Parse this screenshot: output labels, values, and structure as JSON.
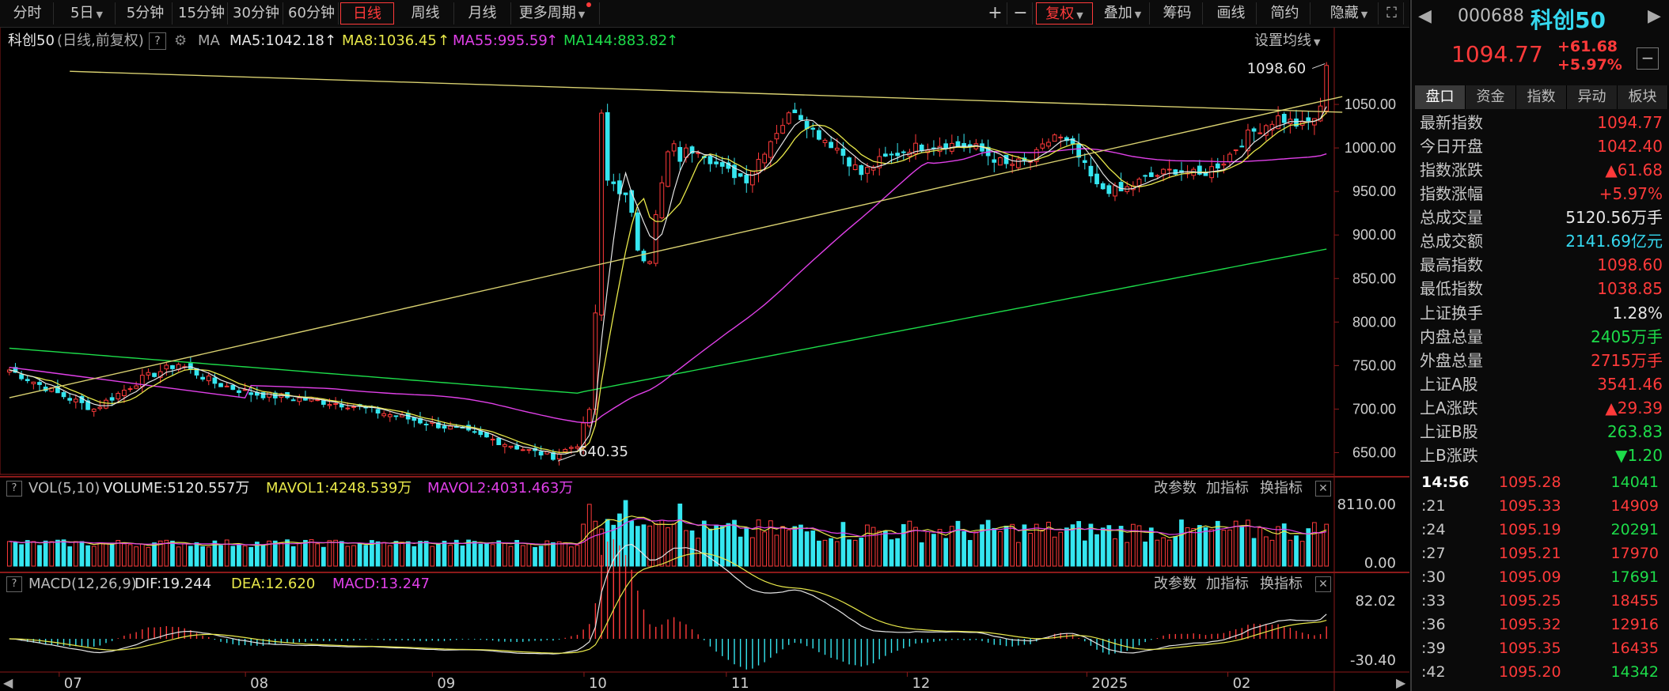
{
  "toolbar": {
    "periods": [
      "分时",
      "5日",
      "5分钟",
      "15分钟",
      "30分钟",
      "60分钟",
      "日线",
      "周线",
      "月线",
      "更多周期"
    ],
    "active_period": "日线",
    "right_buttons": [
      "+",
      "−",
      "复权",
      "叠加",
      "筹码",
      "画线",
      "简约",
      "隐藏"
    ]
  },
  "header": {
    "index_name": "科创50",
    "mode": "(日线,前复权)",
    "ma_label": "MA",
    "ma5": "MA5:1042.18",
    "ma8": "MA8:1036.45",
    "ma55": "MA55:995.59",
    "ma144": "MA144:883.82",
    "settings": "设置均线"
  },
  "vol_header": {
    "name": "VOL(5,10)",
    "volume": "VOLUME:5120.557万",
    "mavol1": "MAVOL1:4248.539万",
    "mavol2": "MAVOL2:4031.463万",
    "btn1": "改参数",
    "btn2": "加指标",
    "btn3": "换指标"
  },
  "macd_header": {
    "name": "MACD(12,26,9)",
    "dif": "DIF:19.244",
    "dea": "DEA:12.620",
    "macd": "MACD:13.247",
    "btn1": "改参数",
    "btn2": "加指标",
    "btn3": "换指标"
  },
  "annotations": {
    "high": "1098.60",
    "low": "640.35"
  },
  "panel": {
    "code": "000688",
    "name": "科创50",
    "price": "1094.77",
    "change": "+61.68",
    "change_pct": "+5.97%",
    "tabs": [
      "盘口",
      "资金",
      "指数",
      "异动",
      "板块"
    ],
    "rows1": [
      {
        "k": "最新指数",
        "v": "1094.77",
        "c": "red"
      },
      {
        "k": "今日开盘",
        "v": "1042.40",
        "c": "red"
      },
      {
        "k": "指数涨跌",
        "v": "▲61.68",
        "c": "red"
      },
      {
        "k": "指数涨幅",
        "v": "+5.97%",
        "c": "red"
      },
      {
        "k": "总成交量",
        "v": "5120.56万手",
        "c": "white"
      },
      {
        "k": "总成交额",
        "v": "2141.69亿元",
        "c": "cyan"
      },
      {
        "k": "最高指数",
        "v": "1098.60",
        "c": "red"
      },
      {
        "k": "最低指数",
        "v": "1038.85",
        "c": "red"
      }
    ],
    "rows2": [
      {
        "k": "上证换手",
        "v": "1.28%",
        "c": "white"
      },
      {
        "k": "内盘总量",
        "v": "2405万手",
        "c": "green"
      },
      {
        "k": "外盘总量",
        "v": "2715万手",
        "c": "red"
      }
    ],
    "rows3": [
      {
        "k": "上证A股",
        "v": "3541.46",
        "c": "red"
      },
      {
        "k": "上A涨跌",
        "v": "▲29.39",
        "c": "red"
      },
      {
        "k": "上证B股",
        "v": "263.83",
        "c": "green"
      },
      {
        "k": "上B涨跌",
        "v": "▼1.20",
        "c": "green"
      }
    ],
    "ticks": [
      {
        "t": "14:56",
        "p": "1095.28",
        "q": "14041",
        "c": "green"
      },
      {
        "t": ":21",
        "p": "1095.33",
        "q": "14909",
        "c": "red"
      },
      {
        "t": ":24",
        "p": "1095.19",
        "q": "20291",
        "c": "green"
      },
      {
        "t": ":27",
        "p": "1095.21",
        "q": "17970",
        "c": "red"
      },
      {
        "t": ":30",
        "p": "1095.09",
        "q": "17691",
        "c": "green"
      },
      {
        "t": ":33",
        "p": "1095.25",
        "q": "18455",
        "c": "red"
      },
      {
        "t": ":36",
        "p": "1095.32",
        "q": "12916",
        "c": "red"
      },
      {
        "t": ":39",
        "p": "1095.35",
        "q": "16435",
        "c": "red"
      },
      {
        "t": ":42",
        "p": "1095.20",
        "q": "14342",
        "c": "green"
      }
    ]
  },
  "chart_data": {
    "type": "candlestick",
    "title": "科创50 (日线,前复权)",
    "price_axis": {
      "ticks": [
        650,
        700,
        750,
        800,
        850,
        900,
        950,
        1000,
        1050
      ],
      "ylim": [
        625,
        1110
      ]
    },
    "volume_axis": {
      "ticks": [
        "8110.00",
        "0.00"
      ]
    },
    "macd_axis": {
      "ticks": [
        "82.02",
        "-30.40"
      ]
    },
    "x_labels": [
      "07",
      "08",
      "09",
      "10",
      "11",
      "12",
      "2025",
      "02"
    ],
    "colors": {
      "up": "#ff3a3a",
      "down": "#35e6f0",
      "ma5": "#e6e6e6",
      "ma8": "#e8e84a",
      "ma55": "#e040e8",
      "ma144": "#1ddc4a",
      "trend": "#d8d070"
    },
    "close_anchors": [
      [
        0,
        745
      ],
      [
        8,
        718
      ],
      [
        14,
        700
      ],
      [
        22,
        735
      ],
      [
        28,
        752
      ],
      [
        34,
        730
      ],
      [
        40,
        718
      ],
      [
        48,
        712
      ],
      [
        56,
        705
      ],
      [
        64,
        692
      ],
      [
        72,
        680
      ],
      [
        80,
        665
      ],
      [
        86,
        652
      ],
      [
        90,
        646
      ],
      [
        94,
        660
      ],
      [
        96,
        700
      ],
      [
        97,
        800
      ],
      [
        98,
        1040
      ],
      [
        99,
        960
      ],
      [
        101,
        960
      ],
      [
        104,
        890
      ],
      [
        106,
        880
      ],
      [
        109,
        990
      ],
      [
        114,
        1000
      ],
      [
        118,
        975
      ],
      [
        122,
        965
      ],
      [
        127,
        1020
      ],
      [
        130,
        1045
      ],
      [
        133,
        1020
      ],
      [
        137,
        1000
      ],
      [
        141,
        970
      ],
      [
        144,
        985
      ],
      [
        149,
        1000
      ],
      [
        155,
        1005
      ],
      [
        160,
        1000
      ],
      [
        165,
        980
      ],
      [
        169,
        985
      ],
      [
        173,
        1015
      ],
      [
        176,
        1000
      ],
      [
        180,
        955
      ],
      [
        184,
        950
      ],
      [
        188,
        965
      ],
      [
        193,
        975
      ],
      [
        197,
        968
      ],
      [
        201,
        985
      ],
      [
        205,
        1015
      ],
      [
        210,
        1035
      ],
      [
        214,
        1025
      ],
      [
        216,
        1035
      ],
      [
        217,
        1044
      ],
      [
        218,
        1094.77
      ]
    ]
  }
}
